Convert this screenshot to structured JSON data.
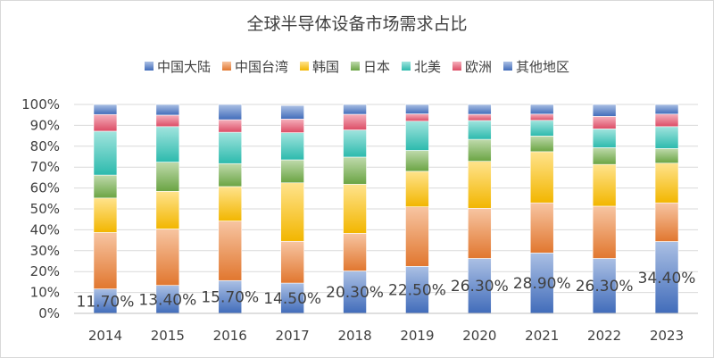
{
  "chart_data": {
    "type": "bar",
    "stacked": "percent",
    "title": "全球半导体设备市场需求占比",
    "categories": [
      "2014",
      "2015",
      "2016",
      "2017",
      "2018",
      "2019",
      "2020",
      "2021",
      "2022",
      "2023"
    ],
    "y_ticks": [
      "0%",
      "10%",
      "20%",
      "30%",
      "40%",
      "50%",
      "60%",
      "70%",
      "80%",
      "90%",
      "100%"
    ],
    "ylim": [
      0,
      100
    ],
    "grid": true,
    "legend_position": "top",
    "series": [
      {
        "name": "中国大陆",
        "color": "#4472c4",
        "values": [
          11.7,
          13.4,
          15.7,
          14.5,
          20.3,
          22.5,
          26.3,
          28.9,
          26.3,
          34.4
        ]
      },
      {
        "name": "中国台湾",
        "color": "#ed7d31",
        "values": [
          27,
          27,
          28.5,
          20,
          18,
          28.5,
          24,
          24,
          25,
          18.5
        ]
      },
      {
        "name": "韩国",
        "color": "#ffc000",
        "values": [
          16.5,
          18,
          16.5,
          28,
          23.5,
          17,
          22.5,
          24.5,
          20,
          19
        ]
      },
      {
        "name": "日本",
        "color": "#70ad47",
        "values": [
          11,
          14,
          11,
          11,
          13,
          10,
          10.5,
          7.5,
          8,
          7
        ]
      },
      {
        "name": "北美",
        "color": "#2ec4b6",
        "values": [
          21,
          17,
          15,
          13,
          13,
          14,
          9,
          7.5,
          9,
          10.5
        ]
      },
      {
        "name": "欧洲",
        "color": "#e8506a",
        "values": [
          8,
          5.5,
          6,
          6.5,
          7.5,
          3.5,
          3,
          3,
          6,
          6
        ]
      },
      {
        "name": "其他地区",
        "color": "#4472c4",
        "values": [
          4.8,
          5.1,
          7.3,
          6.5,
          4.7,
          4.5,
          4.7,
          4.6,
          5.7,
          4.6
        ]
      }
    ],
    "data_labels": [
      "11.70%",
      "13.40%",
      "15.70%",
      "14.50%",
      "20.30%",
      "22.50%",
      "26.30%",
      "28.90%",
      "26.30%",
      "34.40%"
    ]
  }
}
